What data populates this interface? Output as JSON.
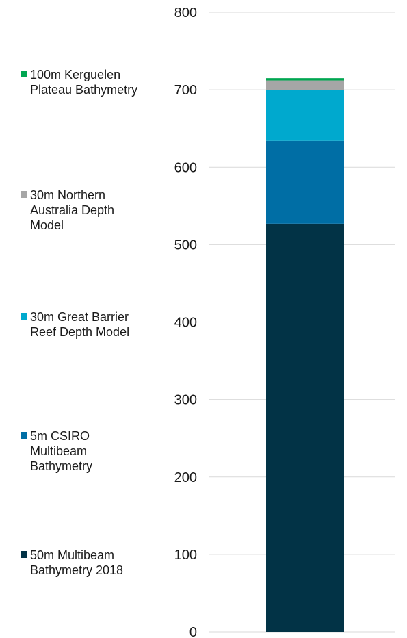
{
  "chart_data": {
    "type": "bar",
    "stacked": true,
    "categories": [
      ""
    ],
    "ylim": [
      0,
      800
    ],
    "yticks": [
      0,
      100,
      200,
      300,
      400,
      500,
      600,
      700,
      800
    ],
    "grid": true,
    "legend_position": "left",
    "series": [
      {
        "name": "50m Multibeam\nBathymetry 2018",
        "values": [
          527
        ],
        "color": "#023346"
      },
      {
        "name": "5m CSIRO\nMultibeam\nBathymetry",
        "values": [
          107
        ],
        "color": "#006EA5"
      },
      {
        "name": "30m Great Barrier\nReef Depth Model",
        "values": [
          66
        ],
        "color": "#00A9CE"
      },
      {
        "name": "30m Northern\nAustralia Depth\nModel",
        "values": [
          12
        ],
        "color": "#A6A6A6"
      },
      {
        "name": "100m Kerguelen\nPlateau Bathymetry",
        "values": [
          3
        ],
        "color": "#00A651"
      }
    ]
  }
}
